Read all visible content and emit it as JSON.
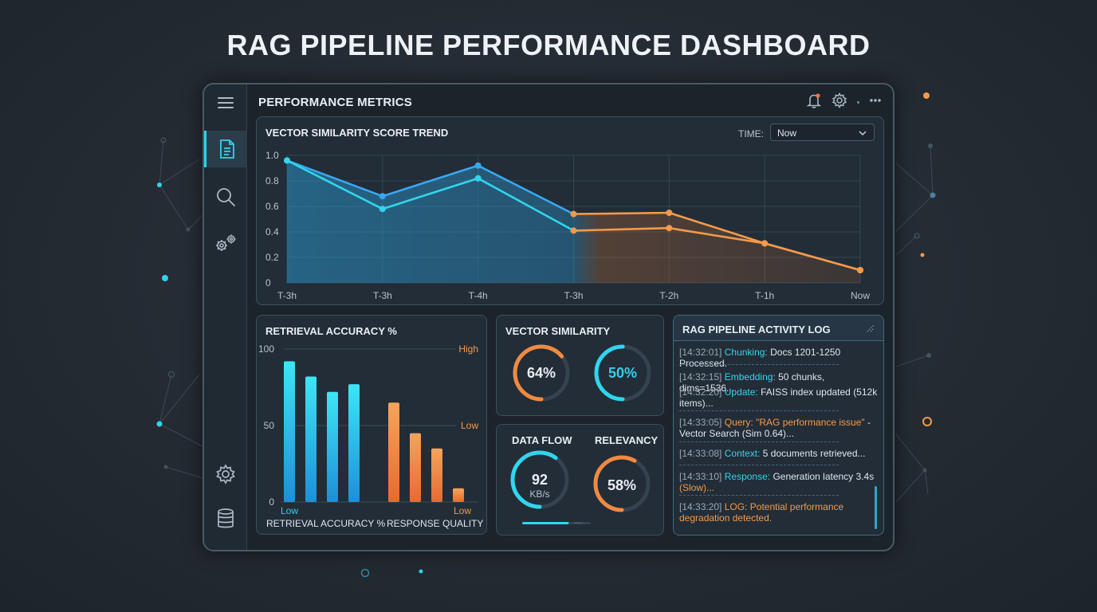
{
  "page": {
    "title": "RAG PIPELINE PERFORMANCE DASHBOARD"
  },
  "topbar": {
    "title": "PERFORMANCE METRICS",
    "icons": [
      "bell-icon",
      "gear-icon",
      "more-icon"
    ]
  },
  "sidebar": {
    "items": [
      "menu-icon",
      "document-icon",
      "search-icon",
      "gears-icon",
      "settings-icon",
      "database-icon"
    ],
    "active": "document-icon"
  },
  "trend": {
    "title": "VECTOR SIMILARITY SCORE TREND",
    "time_label": "TIME:",
    "time_value": "Now"
  },
  "chart_data": [
    {
      "type": "line",
      "title": "VECTOR SIMILARITY SCORE TREND",
      "x": [
        "T-3h",
        "T-3h",
        "T-4h",
        "T-3h",
        "T-2h",
        "T-1h",
        "Now"
      ],
      "ylim": [
        0,
        1.0
      ],
      "yticks": [
        "0",
        "0.2",
        "0.4",
        "0.6",
        "0.8",
        "1.0"
      ],
      "grid": true,
      "series": [
        {
          "color": "#3aa6f2",
          "values": [
            0.96,
            0.68,
            0.92,
            0.54,
            0.55,
            0.31,
            0.1
          ]
        },
        {
          "color": "#2fd6ee",
          "values": [
            0.96,
            0.58,
            0.82,
            0.41,
            0.43,
            0.31,
            0.1
          ]
        }
      ],
      "accent_colors": {
        "blue": "#3aa6f2",
        "cyan": "#2fd6ee",
        "orange": "#f39a4c"
      }
    },
    {
      "type": "bar",
      "title": "RETRIEVAL ACCURACY %",
      "ylim": [
        0,
        100
      ],
      "yticks": [
        "0",
        "50",
        "100"
      ],
      "threshold_labels": {
        "high": "High",
        "low": "Low"
      },
      "groups": [
        {
          "name": "RETRIEVAL ACCURACY %",
          "sublabel": "Low",
          "color": "#2fd6ee",
          "values": [
            92,
            82,
            72,
            77
          ]
        },
        {
          "name": "RESPONSE QUALITY",
          "sublabel": "Low",
          "color": "#f39a4c",
          "values": [
            65,
            45,
            35,
            9
          ]
        }
      ]
    }
  ],
  "vector_similarity": {
    "title": "VECTOR SIMILARITY",
    "gauge1": {
      "label": "64%",
      "value": 64
    },
    "gauge2": {
      "label": "50%",
      "value": 50
    }
  },
  "data_flow": {
    "title": "DATA FLOW",
    "value": "92",
    "unit": "KB/s",
    "level": 0.6,
    "slider": 0.68
  },
  "relevancy": {
    "title": "RELEVANCY",
    "label": "58%",
    "value": 58
  },
  "activity_log": {
    "title": "RAG PIPELINE ACTIVITY LOG",
    "entries": [
      {
        "ts": "[14:32:01]",
        "kind": "Chunking:",
        "msg": "Docs 1201-1250 Processed."
      },
      {
        "ts": "[14:32:15]",
        "kind": "Embedding:",
        "msg": "50 chunks, dims=1536..."
      },
      {
        "ts": "[14:32:20]",
        "kind": "Update:",
        "msg": "FAISS index updated (512k items)..."
      },
      {
        "ts": "[14:33:05]",
        "kind": "Query:",
        "query": "\"RAG performance issue\"",
        "msg": "- Vector Search (Sim 0.64)..."
      },
      {
        "ts": "[14:33:08]",
        "kind": "Context:",
        "msg": "5 documents retrieved..."
      },
      {
        "ts": "[14:33:10]",
        "kind": "Response:",
        "msg": "Generation latency 3.4s",
        "warn": "(Slow)..."
      },
      {
        "ts": "[14:33:20]",
        "kind": "LOG:",
        "warn": "Potential performance degradation detected."
      }
    ]
  }
}
